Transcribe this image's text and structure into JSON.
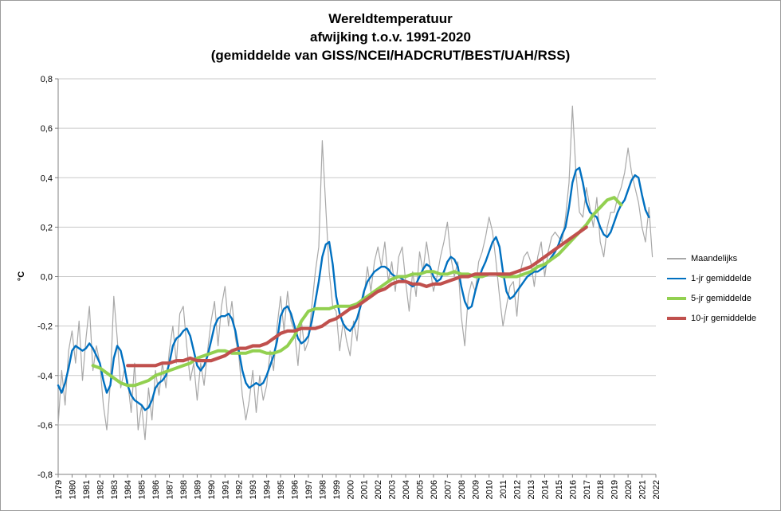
{
  "chart_data": {
    "type": "line",
    "title": "Wereldtemperatuur afwijking t.o.v. 1991-2020 (gemiddelde van GISS/NCEI/HADCRUT/BEST/UAH/RSS)",
    "title_lines": [
      "Wereldtemperatuur",
      "afwijking t.o.v. 1991-2020",
      "(gemiddelde van GISS/NCEI/HADCRUT/BEST/UAH/RSS)"
    ],
    "xlabel": "",
    "ylabel": "°C",
    "xlim": [
      1979,
      2022
    ],
    "ylim": [
      -0.8,
      0.8
    ],
    "grid": "horizontal",
    "legend_position": "right",
    "colors": {
      "grid": "#c9c9c9",
      "axis": "#808080",
      "text": "#000000",
      "background": "#ffffff"
    },
    "y_tick_values": [
      0.8,
      0.6,
      0.4,
      0.2,
      0,
      -0.2,
      -0.4,
      -0.6,
      -0.8
    ],
    "y_tick_labels": [
      "0,8",
      "0,6",
      "0,4",
      "0,2",
      "0,0",
      "-0,2",
      "-0,4",
      "-0,6",
      "-0,8"
    ],
    "x_tick_values": [
      1979,
      1980,
      1981,
      1982,
      1983,
      1984,
      1985,
      1986,
      1987,
      1988,
      1989,
      1990,
      1991,
      1992,
      1993,
      1994,
      1995,
      1996,
      1997,
      1998,
      1999,
      2000,
      2001,
      2002,
      2003,
      2004,
      2005,
      2006,
      2007,
      2008,
      2009,
      2010,
      2011,
      2012,
      2013,
      2014,
      2015,
      2016,
      2017,
      2018,
      2019,
      2020,
      2021,
      2022
    ],
    "series": [
      {
        "name": "Maandelijks",
        "color": "#a8a8a8",
        "width": 1.2,
        "x_start": 1979.0,
        "x_step": 0.25,
        "values": [
          -0.6,
          -0.38,
          -0.52,
          -0.3,
          -0.22,
          -0.35,
          -0.18,
          -0.42,
          -0.25,
          -0.12,
          -0.38,
          -0.28,
          -0.35,
          -0.52,
          -0.62,
          -0.43,
          -0.08,
          -0.25,
          -0.45,
          -0.38,
          -0.42,
          -0.55,
          -0.35,
          -0.62,
          -0.52,
          -0.66,
          -0.45,
          -0.58,
          -0.38,
          -0.48,
          -0.35,
          -0.45,
          -0.3,
          -0.2,
          -0.35,
          -0.15,
          -0.12,
          -0.28,
          -0.42,
          -0.35,
          -0.5,
          -0.35,
          -0.44,
          -0.3,
          -0.18,
          -0.1,
          -0.28,
          -0.12,
          -0.04,
          -0.2,
          -0.1,
          -0.25,
          -0.32,
          -0.48,
          -0.58,
          -0.5,
          -0.38,
          -0.55,
          -0.4,
          -0.5,
          -0.44,
          -0.3,
          -0.38,
          -0.2,
          -0.08,
          -0.22,
          -0.06,
          -0.18,
          -0.22,
          -0.36,
          -0.18,
          -0.3,
          -0.26,
          -0.12,
          0.02,
          0.12,
          0.55,
          0.28,
          0.02,
          -0.12,
          -0.14,
          -0.3,
          -0.18,
          -0.26,
          -0.32,
          -0.18,
          -0.26,
          -0.1,
          -0.08,
          0.04,
          -0.06,
          0.06,
          0.12,
          0.04,
          0.14,
          -0.02,
          0.06,
          -0.06,
          0.08,
          0.12,
          -0.02,
          -0.14,
          0.02,
          -0.08,
          0.1,
          0.02,
          0.14,
          0.04,
          -0.06,
          0.0,
          0.08,
          0.14,
          0.22,
          0.08,
          0.0,
          0.06,
          -0.16,
          -0.28,
          -0.08,
          -0.02,
          -0.06,
          0.06,
          0.1,
          0.16,
          0.24,
          0.18,
          0.06,
          -0.08,
          -0.2,
          -0.12,
          -0.04,
          -0.02,
          -0.16,
          0.02,
          0.08,
          0.1,
          0.06,
          -0.04,
          0.08,
          0.14,
          0.0,
          0.1,
          0.16,
          0.18,
          0.16,
          0.14,
          0.24,
          0.38,
          0.69,
          0.42,
          0.26,
          0.24,
          0.36,
          0.28,
          0.2,
          0.32,
          0.14,
          0.08,
          0.2,
          0.26,
          0.26,
          0.32,
          0.36,
          0.42,
          0.52,
          0.42,
          0.36,
          0.3,
          0.2,
          0.14,
          0.28,
          0.08
        ]
      },
      {
        "name": "1-jr gemiddelde",
        "color": "#0070c0",
        "width": 2.4,
        "x_start": 1979.0,
        "x_step": 0.25,
        "values": [
          -0.44,
          -0.47,
          -0.43,
          -0.37,
          -0.3,
          -0.28,
          -0.29,
          -0.3,
          -0.29,
          -0.27,
          -0.29,
          -0.32,
          -0.35,
          -0.42,
          -0.47,
          -0.44,
          -0.33,
          -0.28,
          -0.3,
          -0.36,
          -0.44,
          -0.48,
          -0.5,
          -0.51,
          -0.52,
          -0.54,
          -0.53,
          -0.5,
          -0.45,
          -0.43,
          -0.42,
          -0.4,
          -0.35,
          -0.28,
          -0.25,
          -0.24,
          -0.22,
          -0.21,
          -0.24,
          -0.3,
          -0.36,
          -0.38,
          -0.36,
          -0.32,
          -0.26,
          -0.2,
          -0.17,
          -0.16,
          -0.16,
          -0.15,
          -0.17,
          -0.22,
          -0.3,
          -0.38,
          -0.43,
          -0.45,
          -0.44,
          -0.43,
          -0.44,
          -0.43,
          -0.4,
          -0.36,
          -0.32,
          -0.26,
          -0.16,
          -0.13,
          -0.12,
          -0.15,
          -0.2,
          -0.25,
          -0.27,
          -0.26,
          -0.24,
          -0.18,
          -0.1,
          -0.02,
          0.08,
          0.13,
          0.14,
          0.05,
          -0.08,
          -0.15,
          -0.19,
          -0.21,
          -0.22,
          -0.2,
          -0.17,
          -0.12,
          -0.06,
          -0.02,
          0.0,
          0.02,
          0.03,
          0.04,
          0.04,
          0.03,
          0.01,
          0.0,
          0.0,
          -0.01,
          -0.02,
          -0.03,
          -0.04,
          -0.03,
          0.0,
          0.03,
          0.05,
          0.04,
          0.0,
          -0.02,
          -0.01,
          0.02,
          0.06,
          0.08,
          0.07,
          0.04,
          -0.04,
          -0.1,
          -0.13,
          -0.12,
          -0.06,
          -0.01,
          0.03,
          0.06,
          0.1,
          0.14,
          0.16,
          0.12,
          0.02,
          -0.06,
          -0.09,
          -0.08,
          -0.06,
          -0.04,
          -0.02,
          0.0,
          0.01,
          0.02,
          0.02,
          0.03,
          0.04,
          0.06,
          0.08,
          0.1,
          0.13,
          0.17,
          0.2,
          0.28,
          0.38,
          0.43,
          0.44,
          0.38,
          0.3,
          0.26,
          0.25,
          0.24,
          0.2,
          0.17,
          0.16,
          0.18,
          0.22,
          0.26,
          0.29,
          0.31,
          0.35,
          0.39,
          0.41,
          0.4,
          0.33,
          0.27,
          0.24
        ]
      },
      {
        "name": "5-jr gemiddelde",
        "color": "#92d050",
        "width": 4,
        "x_start": 1981.5,
        "x_step": 0.5,
        "values": [
          -0.36,
          -0.37,
          -0.39,
          -0.41,
          -0.43,
          -0.44,
          -0.44,
          -0.43,
          -0.42,
          -0.4,
          -0.39,
          -0.38,
          -0.37,
          -0.36,
          -0.35,
          -0.33,
          -0.32,
          -0.31,
          -0.3,
          -0.3,
          -0.31,
          -0.31,
          -0.31,
          -0.3,
          -0.3,
          -0.31,
          -0.31,
          -0.3,
          -0.28,
          -0.24,
          -0.18,
          -0.14,
          -0.13,
          -0.13,
          -0.13,
          -0.12,
          -0.12,
          -0.12,
          -0.11,
          -0.09,
          -0.07,
          -0.05,
          -0.03,
          -0.01,
          0.0,
          0.0,
          0.01,
          0.01,
          0.02,
          0.02,
          0.01,
          0.01,
          0.02,
          0.01,
          0.01,
          0.0,
          0.0,
          0.01,
          0.01,
          0.0,
          0.0,
          0.0,
          0.01,
          0.02,
          0.04,
          0.05,
          0.07,
          0.09,
          0.12,
          0.15,
          0.18,
          0.21,
          0.25,
          0.28,
          0.31,
          0.32,
          0.29
        ]
      },
      {
        "name": "10-jr gemiddelde",
        "color": "#c0504d",
        "width": 4.2,
        "x_start": 1984.0,
        "x_step": 0.5,
        "values": [
          -0.36,
          -0.36,
          -0.36,
          -0.36,
          -0.36,
          -0.35,
          -0.35,
          -0.34,
          -0.34,
          -0.33,
          -0.34,
          -0.34,
          -0.34,
          -0.33,
          -0.32,
          -0.3,
          -0.29,
          -0.29,
          -0.28,
          -0.28,
          -0.27,
          -0.25,
          -0.23,
          -0.22,
          -0.22,
          -0.21,
          -0.21,
          -0.21,
          -0.2,
          -0.18,
          -0.17,
          -0.15,
          -0.13,
          -0.12,
          -0.1,
          -0.08,
          -0.06,
          -0.05,
          -0.03,
          -0.02,
          -0.02,
          -0.03,
          -0.03,
          -0.04,
          -0.03,
          -0.03,
          -0.02,
          -0.01,
          0.0,
          0.0,
          0.01,
          0.01,
          0.01,
          0.01,
          0.01,
          0.01,
          0.02,
          0.03,
          0.04,
          0.06,
          0.08,
          0.1,
          0.12,
          0.14,
          0.16,
          0.18,
          0.2
        ]
      }
    ]
  }
}
